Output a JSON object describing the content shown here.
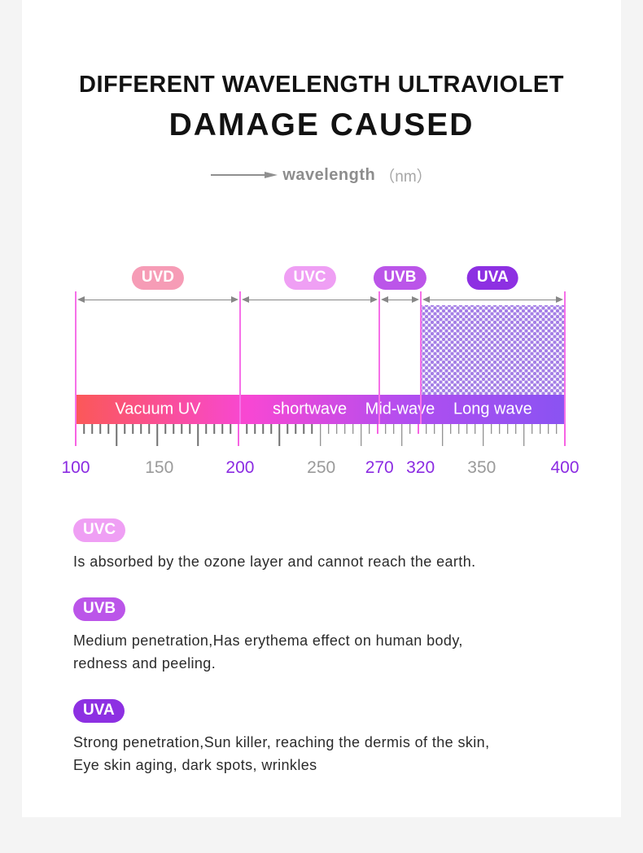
{
  "header": {
    "title_line1": "DIFFERENT WAVELENGTH ULTRAVIOLET",
    "title_line2": "DAMAGE CAUSED",
    "axis_caption_label": "wavelength",
    "axis_caption_unit": "（nm）"
  },
  "chart_data": {
    "type": "spectrum-band-diagram",
    "title": "Different wavelength ultraviolet damage caused",
    "x_axis": {
      "label": "wavelength",
      "unit": "nm",
      "range": [
        100,
        400
      ]
    },
    "axis_anchor_pct": {
      "100": 0,
      "150": 17.1,
      "200": 33.6,
      "250": 50.2,
      "270": 62.1,
      "320": 70.5,
      "350": 83.0,
      "400": 100
    },
    "boundaries_nm": [
      100,
      200,
      270,
      320,
      400
    ],
    "bands": [
      {
        "name": "UVD",
        "range_nm": [
          100,
          200
        ],
        "badge_color": "#f69cb6",
        "bar_label": "Vacuum UV",
        "hatched": false
      },
      {
        "name": "UVC",
        "range_nm": [
          200,
          270
        ],
        "badge_color": "#ef9ff4",
        "bar_label": "shortwave",
        "hatched": false
      },
      {
        "name": "UVB",
        "range_nm": [
          270,
          320
        ],
        "badge_color": "#bb55e9",
        "bar_label": "Mid-wave",
        "hatched": false
      },
      {
        "name": "UVA",
        "range_nm": [
          320,
          400
        ],
        "badge_color": "#8d30e2",
        "bar_label": "Long wave",
        "hatched": true
      }
    ],
    "bar_gradient": [
      "#fb5858 0%",
      "#f847d3 35%",
      "#b14ef0 68%",
      "#8a53f2 100%"
    ],
    "ruler": {
      "count": 61,
      "major_every": 5,
      "accent_major_indices": [
        0,
        20,
        60
      ],
      "accent_minor_indices": [
        37,
        42
      ]
    },
    "axis_labels": [
      {
        "value": 100,
        "accent": true
      },
      {
        "value": 150,
        "accent": false
      },
      {
        "value": 200,
        "accent": true
      },
      {
        "value": 250,
        "accent": false
      },
      {
        "value": 270,
        "accent": true
      },
      {
        "value": 320,
        "accent": true
      },
      {
        "value": 350,
        "accent": false
      },
      {
        "value": 400,
        "accent": true
      }
    ],
    "colors": {
      "accent_line": "#f670e8",
      "arrow": "#878787",
      "tick": "#707070",
      "tick_accent": "#f763e3",
      "axis_num": "#8b2be2",
      "axis_num_muted": "#9a9a9a",
      "hatch_dot": "#a47ee6"
    }
  },
  "sections": [
    {
      "name": "UVC",
      "color": "#ef9ff4",
      "lines": [
        "Is absorbed by the ozone layer and cannot reach the earth."
      ]
    },
    {
      "name": "UVB",
      "color": "#bb55e9",
      "lines": [
        "Medium penetration,Has erythema effect on human body,",
        "redness and peeling."
      ]
    },
    {
      "name": "UVA",
      "color": "#8d30e2",
      "lines": [
        "Strong penetration,Sun killer, reaching the dermis of the skin,",
        "Eye skin aging, dark spots, wrinkles"
      ]
    }
  ]
}
